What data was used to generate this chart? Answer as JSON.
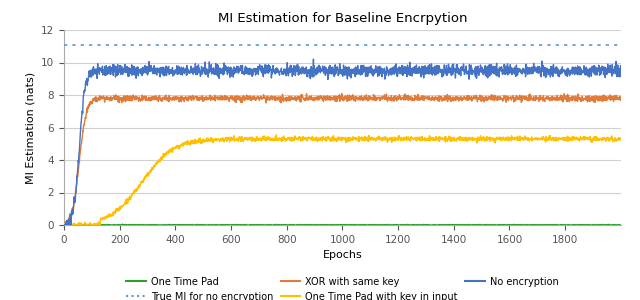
{
  "title": "MI Estimation for Baseline Encrpytion",
  "xlabel": "Epochs",
  "ylabel": "MI Estimation (nats)",
  "xlim": [
    0,
    2000
  ],
  "ylim": [
    0,
    12
  ],
  "yticks": [
    0,
    2,
    4,
    6,
    8,
    10,
    12
  ],
  "xticks": [
    0,
    200,
    400,
    600,
    800,
    1000,
    1200,
    1400,
    1600,
    1800
  ],
  "true_mi": 11.09,
  "colors": {
    "one_time_pad": "#2ca02c",
    "true_mi": "#5b9bd5",
    "xor_same_key": "#e07b39",
    "otp_key_input": "#ffc000",
    "no_encryption": "#4472c4"
  },
  "n_epochs": 2000,
  "seed": 42,
  "background": "#ffffff",
  "grid_color": "#d0d0d0"
}
